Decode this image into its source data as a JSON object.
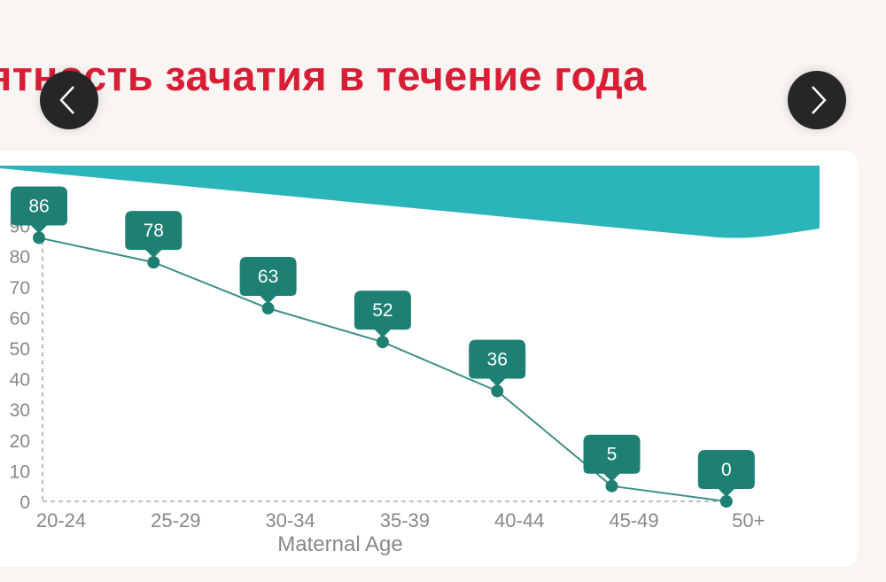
{
  "title": "ятность зачатия в течение года",
  "nav": {
    "prev_icon": "chevron-left-icon",
    "next_icon": "chevron-right-icon"
  },
  "colors": {
    "title": "#d81e35",
    "band": "#2bb5bb",
    "marker": "#1e7f73",
    "line": "#3d8f86",
    "axis": "#999999"
  },
  "chart_data": {
    "type": "line",
    "xlabel": "Maternal Age",
    "ylabel": "",
    "categories": [
      "20-24",
      "25-29",
      "30-34",
      "35-39",
      "40-44",
      "45-49",
      "50+"
    ],
    "values": [
      86,
      78,
      63,
      52,
      36,
      5,
      0
    ],
    "data_labels": [
      "86",
      "78",
      "63",
      "52",
      "36",
      "5",
      "0"
    ],
    "yticks": [
      "0",
      "10",
      "20",
      "30",
      "40",
      "50",
      "60",
      "70",
      "80",
      "90"
    ],
    "ylim": [
      0,
      90
    ],
    "grid": false
  }
}
